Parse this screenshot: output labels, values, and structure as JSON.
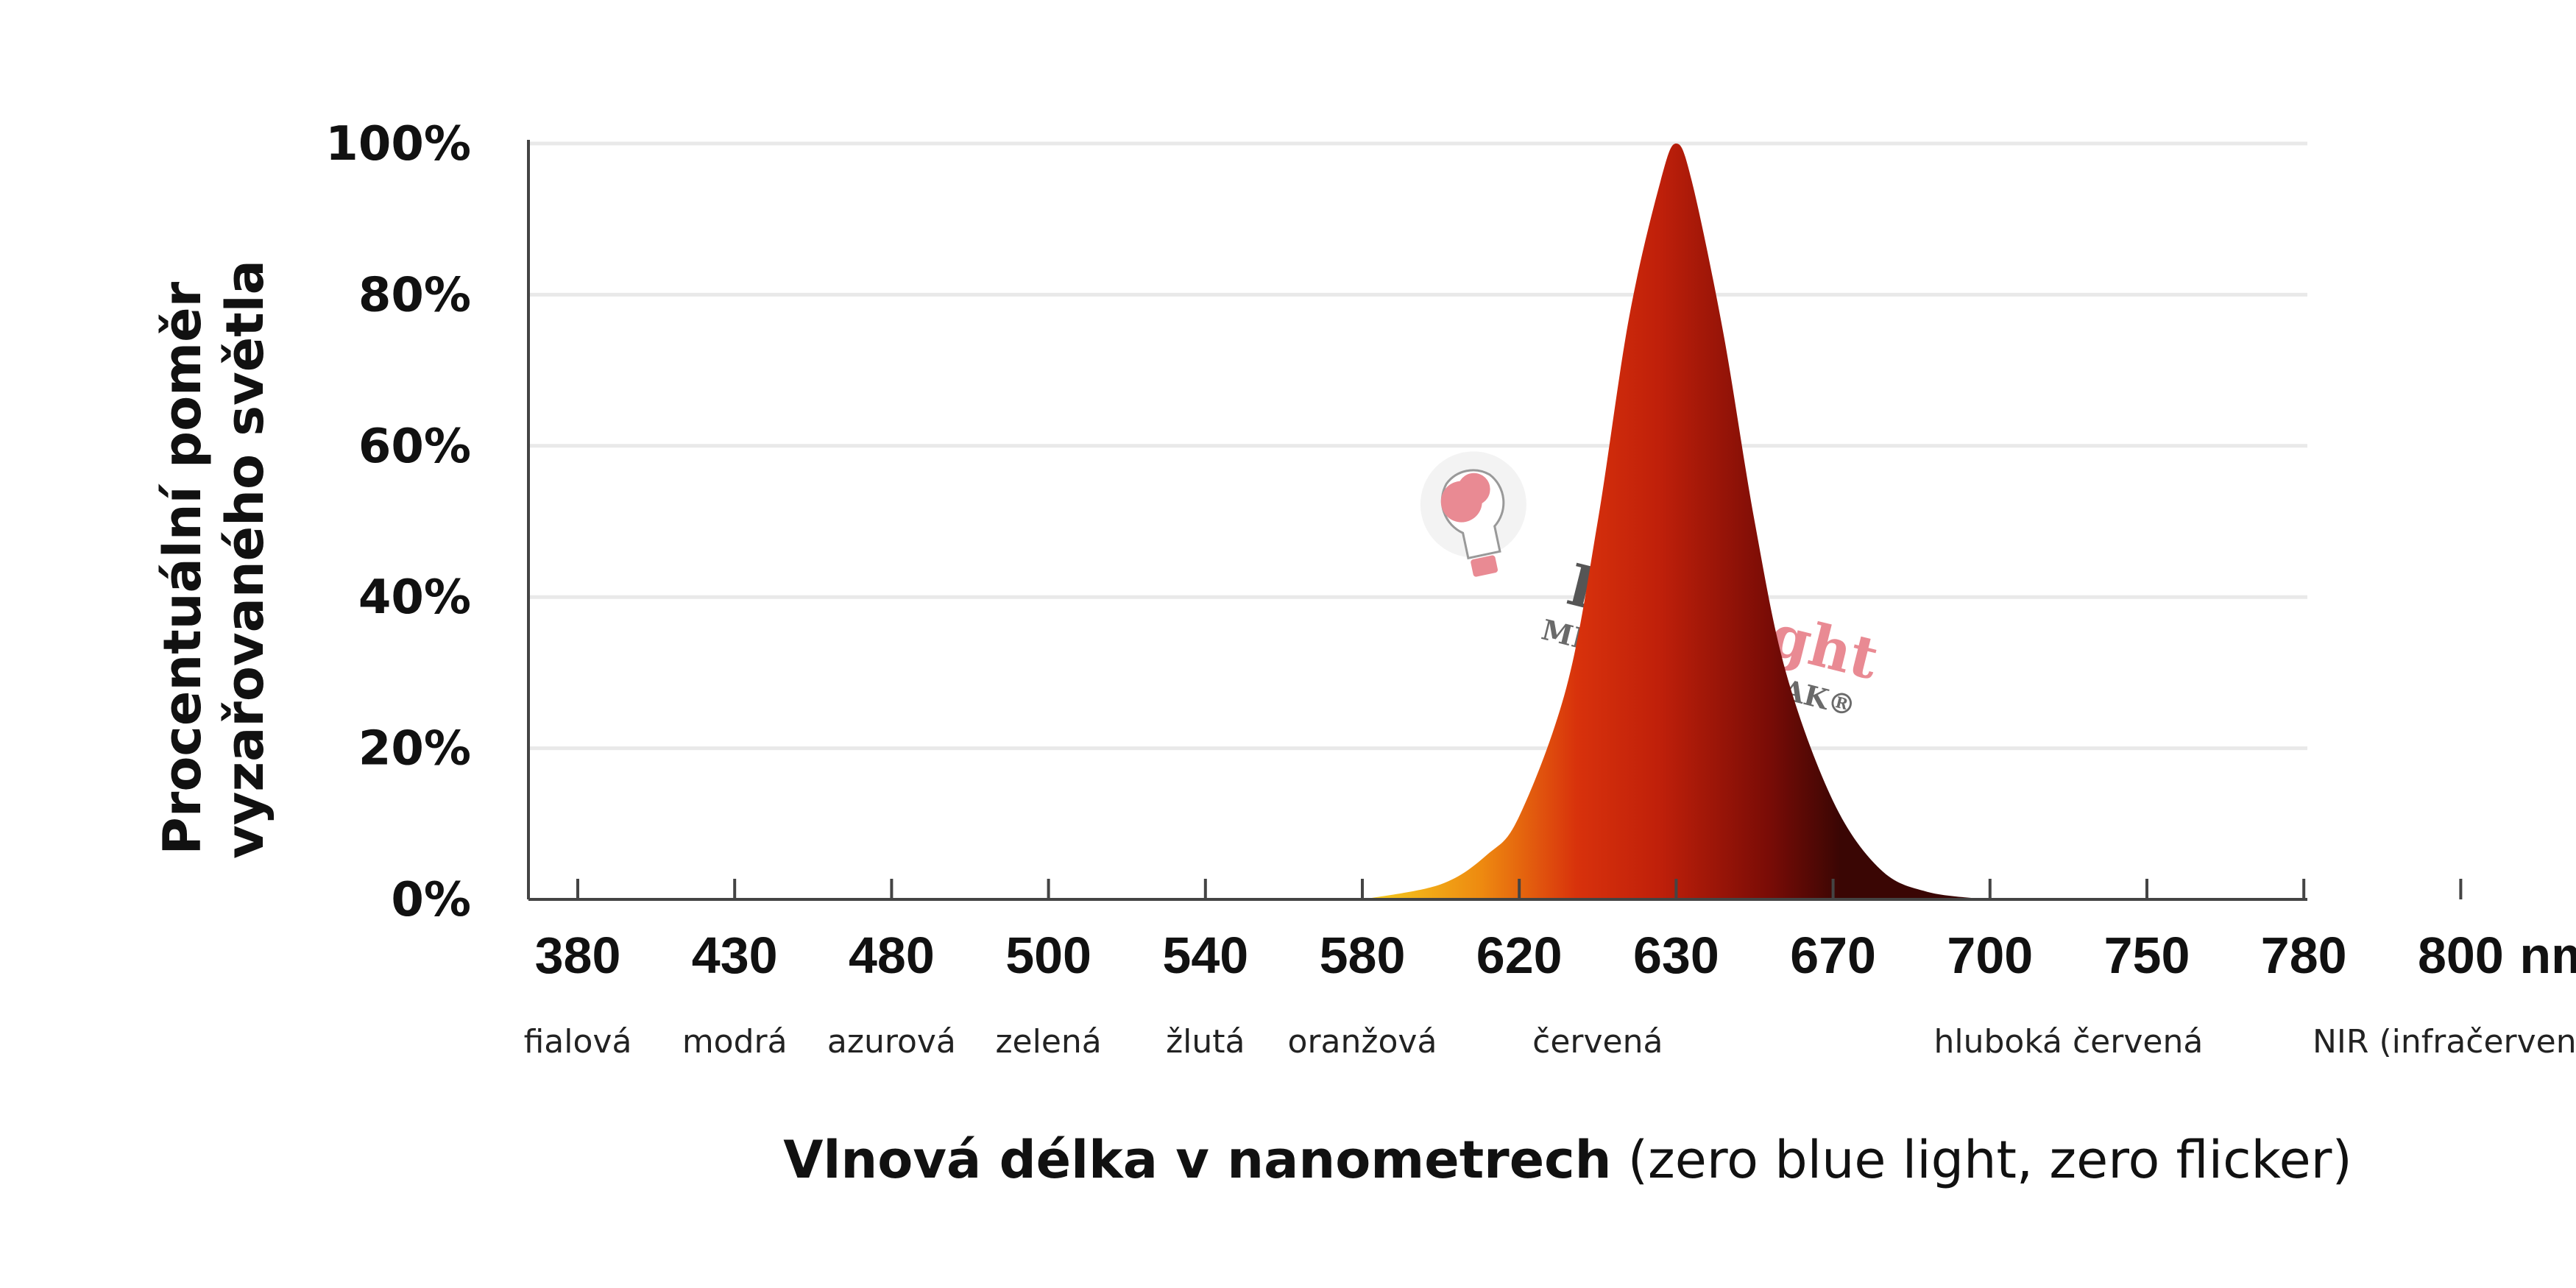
{
  "chart_data": {
    "type": "area",
    "ylabel_lines": [
      "Procentuální poměr",
      "vyzařovaného světla"
    ],
    "xlabel_bold": "Vlnová délka v nanometrech",
    "xlabel_rest": " (zero blue light, zero flicker)",
    "x_ticks": [
      "380",
      "430",
      "480",
      "500",
      "540",
      "580",
      "620",
      "630",
      "670",
      "700",
      "750",
      "780",
      "800"
    ],
    "x_unit": "nm",
    "y_ticks": [
      "0%",
      "20%",
      "40%",
      "60%",
      "80%",
      "100%"
    ],
    "ylim": [
      0,
      100
    ],
    "grid": true,
    "color_bands": [
      {
        "label": "fialová",
        "at_tick": 0
      },
      {
        "label": "modrá",
        "at_tick": 1
      },
      {
        "label": "azurová",
        "at_tick": 2
      },
      {
        "label": "zelená",
        "at_tick": 3
      },
      {
        "label": "žlutá",
        "at_tick": 4
      },
      {
        "label": "oranžová",
        "at_tick": 5
      },
      {
        "label": "červená",
        "at_tick": 6.5
      },
      {
        "label": "hluboká červená",
        "at_tick": 9.5
      },
      {
        "label": "NIR (infračervená)",
        "at_tick": 12
      }
    ],
    "series": [
      {
        "x_tick_index": [
          5.0,
          5.5,
          5.8,
          6.0,
          6.3,
          6.5,
          6.7,
          6.9,
          7.0,
          7.1,
          7.3,
          7.5,
          7.7,
          8.0,
          8.3,
          8.6,
          9.0
        ],
        "values": [
          0,
          2,
          6,
          11,
          28,
          50,
          77,
          95,
          100,
          95,
          75,
          50,
          30,
          13,
          4,
          1,
          0
        ]
      }
    ],
    "colors": {
      "fill_yellow": "#f5d020",
      "fill_orange": "#ee8a10",
      "fill_red": "#d8320c",
      "fill_dark": "#5a0806",
      "axis": "#444444",
      "grid": "#e9e9e9"
    }
  },
  "watermark": {
    "brand_part1": "Easy",
    "brand_part2": "Light",
    "tagline": "MITOCHONDRIAK®",
    "icon": "brain-bulb-icon",
    "color1": "#555555",
    "color2": "#e98a93"
  }
}
